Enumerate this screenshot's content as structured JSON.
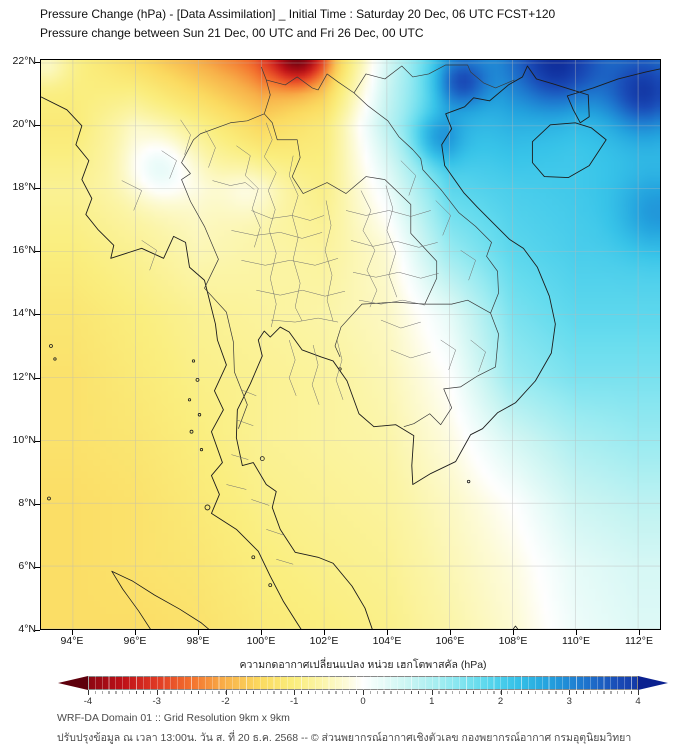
{
  "title": {
    "line1": "Pressure Change (hPa) - [Data Assimilation] _ Initial Time : Saturday 20 Dec, 06 UTC FCST+120",
    "line2": "Pressure change between Sun 21 Dec, 00 UTC and Fri 26 Dec, 00 UTC"
  },
  "map": {
    "y_axis": {
      "ticks": [
        "22°N",
        "20°N",
        "18°N",
        "16°N",
        "14°N",
        "12°N",
        "10°N",
        "8°N",
        "6°N",
        "4°N"
      ]
    },
    "x_axis": {
      "ticks": [
        "94°E",
        "96°E",
        "98°E",
        "100°E",
        "102°E",
        "104°E",
        "106°E",
        "108°E",
        "110°E",
        "112°E"
      ]
    }
  },
  "colorbar": {
    "title_thai": "ความกดอากาศเปลี่ยนแปลง หน่วย เฮกโตพาสคัล (hPa)",
    "ticks": [
      "-4",
      "-3",
      "-2",
      "-1",
      "0",
      "1",
      "2",
      "3",
      "4"
    ],
    "unit": "hPa",
    "min_color": "#5e000c",
    "zero_color": "#ffffff",
    "max_color": "#0b2190",
    "stops": [
      {
        "v": -4.4,
        "c": "#5e000c"
      },
      {
        "v": -4.0,
        "c": "#8d0712"
      },
      {
        "v": -3.5,
        "c": "#bf1117"
      },
      {
        "v": -3.0,
        "c": "#e03a24"
      },
      {
        "v": -2.5,
        "c": "#f4722e"
      },
      {
        "v": -2.0,
        "c": "#f8b24a"
      },
      {
        "v": -1.5,
        "c": "#fbda60"
      },
      {
        "v": -1.0,
        "c": "#faee7e"
      },
      {
        "v": -0.6,
        "c": "#fbf5a8"
      },
      {
        "v": -0.25,
        "c": "#fdfbd8"
      },
      {
        "v": 0.0,
        "c": "#ffffff"
      },
      {
        "v": 0.3,
        "c": "#e6fbf8"
      },
      {
        "v": 0.7,
        "c": "#c6f4f2"
      },
      {
        "v": 1.2,
        "c": "#9aebf1"
      },
      {
        "v": 1.7,
        "c": "#66dcee"
      },
      {
        "v": 2.2,
        "c": "#38c4e9"
      },
      {
        "v": 2.7,
        "c": "#23a2de"
      },
      {
        "v": 3.2,
        "c": "#1e78cf"
      },
      {
        "v": 3.7,
        "c": "#1a4cb8"
      },
      {
        "v": 4.4,
        "c": "#0b2190"
      }
    ]
  },
  "footer": {
    "line1": "WRF-DA Domain 01 :: Grid Resolution 9km x 9km",
    "line2": "ปรับปรุงข้อมูล ณ เวลา 13:00น. วัน ส. ที่ 20 ธ.ค. 2568 -- © ส่วนพยากรณ์อากาศเชิงตัวเลข กองพยากรณ์อากาศ กรมอุตุนิยมวิทยา"
  },
  "chart_data": {
    "type": "heatmap",
    "title": "Pressure change (hPa) between Sun 21 Dec 00 UTC and Fri 26 Dec 00 UTC",
    "unit": "hPa",
    "value_range": [
      -4,
      4
    ],
    "lon_range": [
      93.0,
      112.7
    ],
    "lat_range": [
      4.0,
      22.1
    ],
    "lon": [
      94,
      96,
      98,
      100,
      102,
      104,
      106,
      108,
      110,
      112
    ],
    "lat": [
      22,
      20,
      18,
      16,
      14,
      12,
      10,
      8,
      6,
      4
    ],
    "values_hpa": [
      [
        -0.9,
        -1.4,
        -2.0,
        -2.6,
        -2.0,
        0.5,
        2.4,
        2.8,
        2.5,
        2.8
      ],
      [
        -1.1,
        -0.4,
        -0.9,
        -1.5,
        -1.1,
        0.8,
        2.2,
        2.4,
        2.1,
        2.3
      ],
      [
        -0.8,
        -0.5,
        -0.3,
        -0.6,
        -0.9,
        0.2,
        1.8,
        2.0,
        2.1,
        2.2
      ],
      [
        -1.0,
        -0.8,
        -0.5,
        -0.6,
        -0.7,
        -0.3,
        1.2,
        1.8,
        2.0,
        2.0
      ],
      [
        -1.2,
        -1.0,
        -0.8,
        -0.7,
        -0.6,
        -0.4,
        0.3,
        1.5,
        1.8,
        1.8
      ],
      [
        -1.3,
        -1.1,
        -0.9,
        -0.8,
        -0.7,
        -0.5,
        0.0,
        1.2,
        1.5,
        1.5
      ],
      [
        -1.3,
        -1.2,
        -1.0,
        -0.8,
        -0.7,
        -0.6,
        -0.2,
        0.5,
        1.0,
        1.2
      ],
      [
        -1.4,
        -1.3,
        -1.1,
        -0.9,
        -0.8,
        -0.7,
        -0.4,
        0.0,
        0.6,
        0.8
      ],
      [
        -1.4,
        -1.3,
        -1.2,
        -1.0,
        -0.9,
        -0.8,
        -0.5,
        -0.2,
        0.3,
        0.5
      ],
      [
        -1.4,
        -1.4,
        -1.3,
        -1.1,
        -1.0,
        -0.9,
        -0.6,
        -0.3,
        0.2,
        0.4
      ]
    ],
    "hotspots": [
      {
        "lon": 101.2,
        "lat": 22.2,
        "amp": -2.0,
        "r": 0.85,
        "note": "orange-red maximum fall at top edge"
      },
      {
        "lon": 93.2,
        "lat": 21.9,
        "amp": 0.5,
        "r": 0.6,
        "note": "pale spot NW corner"
      },
      {
        "lon": 96.8,
        "lat": 18.7,
        "amp": 0.75,
        "r": 1.0,
        "note": "light cyan patch over E Myanmar"
      },
      {
        "lon": 99.7,
        "lat": 18.0,
        "amp": 0.35,
        "r": 0.9,
        "note": "pale patch N Thailand"
      },
      {
        "lon": 106.4,
        "lat": 21.4,
        "amp": 1.3,
        "r": 0.8,
        "note": "deep blue N Vietnam"
      },
      {
        "lon": 105.6,
        "lat": 19.6,
        "amp": 0.9,
        "r": 0.8,
        "note": "blue blob Gulf of Tonkin coast"
      },
      {
        "lon": 109.5,
        "lat": 21.9,
        "amp": 1.6,
        "r": 1.4,
        "note": "navy maximum rise S China coast"
      },
      {
        "lon": 112.2,
        "lat": 21.0,
        "amp": 1.4,
        "r": 1.2,
        "note": "navy NE corner"
      },
      {
        "lon": 112.6,
        "lat": 17.2,
        "amp": 0.7,
        "r": 1.2,
        "note": "blue blob right edge"
      }
    ]
  }
}
